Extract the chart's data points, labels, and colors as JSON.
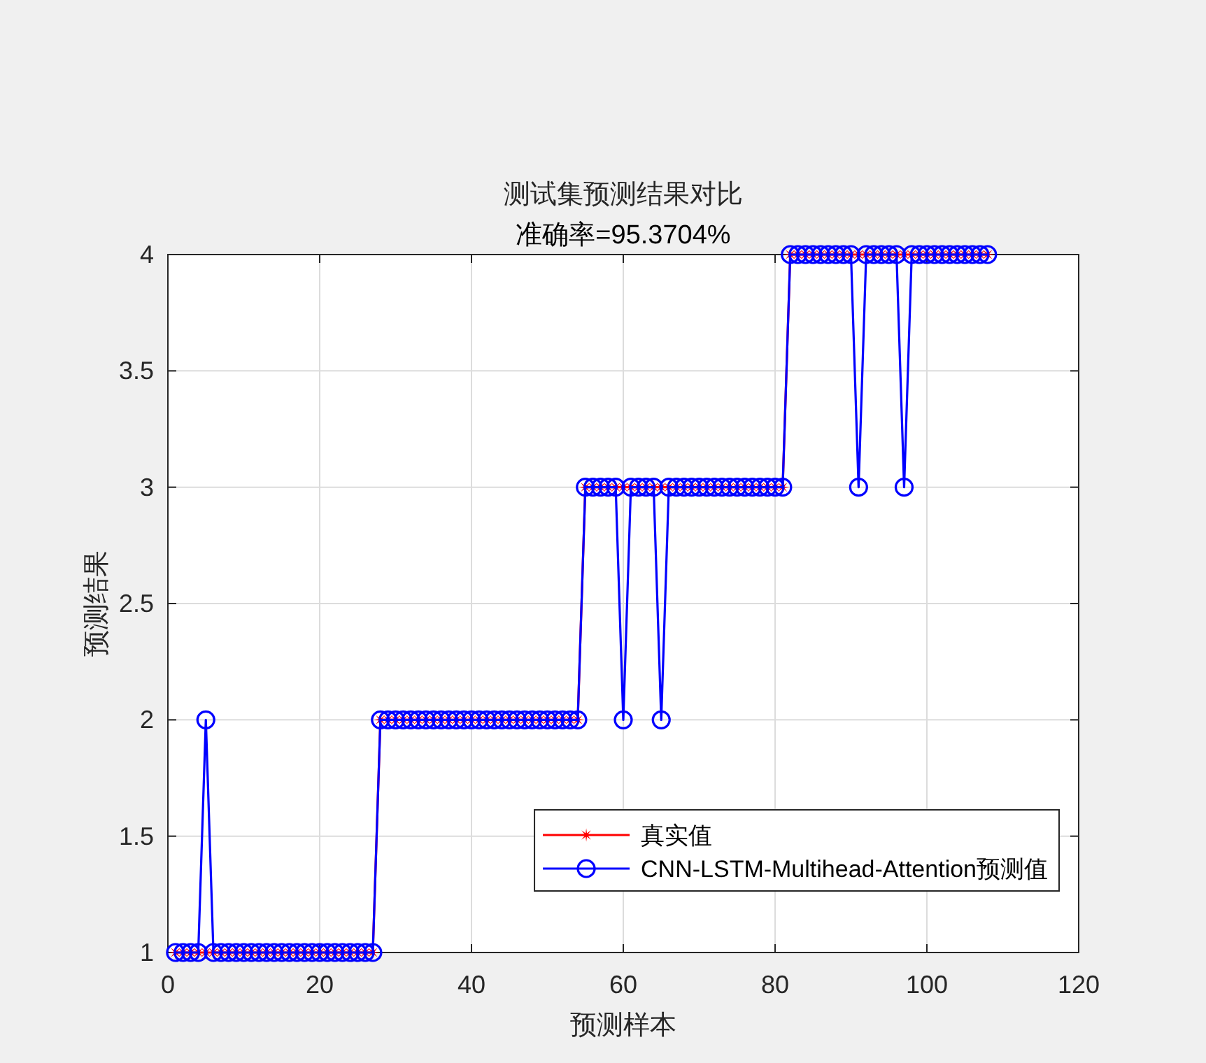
{
  "chart_data": {
    "type": "line",
    "title": "测试集预测结果对比",
    "subtitle": "准确率=95.3704%",
    "xlabel": "预测样本",
    "ylabel": "预测结果",
    "x": [
      1,
      2,
      3,
      4,
      5,
      6,
      7,
      8,
      9,
      10,
      11,
      12,
      13,
      14,
      15,
      16,
      17,
      18,
      19,
      20,
      21,
      22,
      23,
      24,
      25,
      26,
      27,
      28,
      29,
      30,
      31,
      32,
      33,
      34,
      35,
      36,
      37,
      38,
      39,
      40,
      41,
      42,
      43,
      44,
      45,
      46,
      47,
      48,
      49,
      50,
      51,
      52,
      53,
      54,
      55,
      56,
      57,
      58,
      59,
      60,
      61,
      62,
      63,
      64,
      65,
      66,
      67,
      68,
      69,
      70,
      71,
      72,
      73,
      74,
      75,
      76,
      77,
      78,
      79,
      80,
      81,
      82,
      83,
      84,
      85,
      86,
      87,
      88,
      89,
      90,
      91,
      92,
      93,
      94,
      95,
      96,
      97,
      98,
      99,
      100,
      101,
      102,
      103,
      104,
      105,
      106,
      107,
      108
    ],
    "series": [
      {
        "name": "真实值",
        "color": "#ff0000",
        "marker": "star",
        "values": [
          1,
          1,
          1,
          1,
          1,
          1,
          1,
          1,
          1,
          1,
          1,
          1,
          1,
          1,
          1,
          1,
          1,
          1,
          1,
          1,
          1,
          1,
          1,
          1,
          1,
          1,
          1,
          2,
          2,
          2,
          2,
          2,
          2,
          2,
          2,
          2,
          2,
          2,
          2,
          2,
          2,
          2,
          2,
          2,
          2,
          2,
          2,
          2,
          2,
          2,
          2,
          2,
          2,
          2,
          3,
          3,
          3,
          3,
          3,
          3,
          3,
          3,
          3,
          3,
          3,
          3,
          3,
          3,
          3,
          3,
          3,
          3,
          3,
          3,
          3,
          3,
          3,
          3,
          3,
          3,
          3,
          4,
          4,
          4,
          4,
          4,
          4,
          4,
          4,
          4,
          4,
          4,
          4,
          4,
          4,
          4,
          4,
          4,
          4,
          4,
          4,
          4,
          4,
          4,
          4,
          4,
          4,
          4
        ]
      },
      {
        "name": "CNN-LSTM-Multihead-Attention预测值",
        "color": "#0000ff",
        "marker": "circle",
        "values": [
          1,
          1,
          1,
          1,
          2,
          1,
          1,
          1,
          1,
          1,
          1,
          1,
          1,
          1,
          1,
          1,
          1,
          1,
          1,
          1,
          1,
          1,
          1,
          1,
          1,
          1,
          1,
          2,
          2,
          2,
          2,
          2,
          2,
          2,
          2,
          2,
          2,
          2,
          2,
          2,
          2,
          2,
          2,
          2,
          2,
          2,
          2,
          2,
          2,
          2,
          2,
          2,
          2,
          2,
          3,
          3,
          3,
          3,
          3,
          2,
          3,
          3,
          3,
          3,
          2,
          3,
          3,
          3,
          3,
          3,
          3,
          3,
          3,
          3,
          3,
          3,
          3,
          3,
          3,
          3,
          3,
          4,
          4,
          4,
          4,
          4,
          4,
          4,
          4,
          4,
          3,
          4,
          4,
          4,
          4,
          4,
          3,
          4,
          4,
          4,
          4,
          4,
          4,
          4,
          4,
          4,
          4,
          4
        ]
      }
    ],
    "xlim": [
      0,
      120
    ],
    "xticks": [
      0,
      20,
      40,
      60,
      80,
      100,
      120
    ],
    "ylim": [
      1,
      4
    ],
    "yticks": [
      1,
      1.5,
      2,
      2.5,
      3,
      3.5,
      4
    ],
    "grid": true,
    "legend": "bottom right",
    "line_style": "solid"
  }
}
